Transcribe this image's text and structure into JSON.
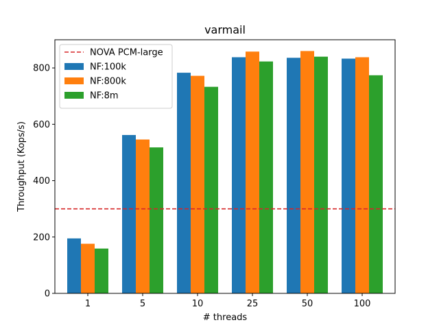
{
  "chart_data": {
    "type": "bar",
    "title": "varmail",
    "xlabel": "# threads",
    "ylabel": "Throughput (Kops/s)",
    "categories": [
      "1",
      "5",
      "10",
      "25",
      "50",
      "100"
    ],
    "ylim": [
      0,
      900
    ],
    "yticks": [
      0,
      200,
      400,
      600,
      800
    ],
    "grid": false,
    "legend_position": "top-left",
    "reference_line": {
      "name": "NOVA PCM-large",
      "value": 300,
      "color": "#d62728",
      "style": "dashed"
    },
    "series": [
      {
        "name": "NF:100k",
        "color": "#1f77b4",
        "values": [
          195,
          562,
          783,
          838,
          836,
          833
        ]
      },
      {
        "name": "NF:800k",
        "color": "#ff7f0e",
        "values": [
          176,
          546,
          772,
          858,
          860,
          838
        ]
      },
      {
        "name": "NF:8m",
        "color": "#2ca02c",
        "values": [
          159,
          518,
          733,
          823,
          840,
          774
        ]
      }
    ]
  }
}
